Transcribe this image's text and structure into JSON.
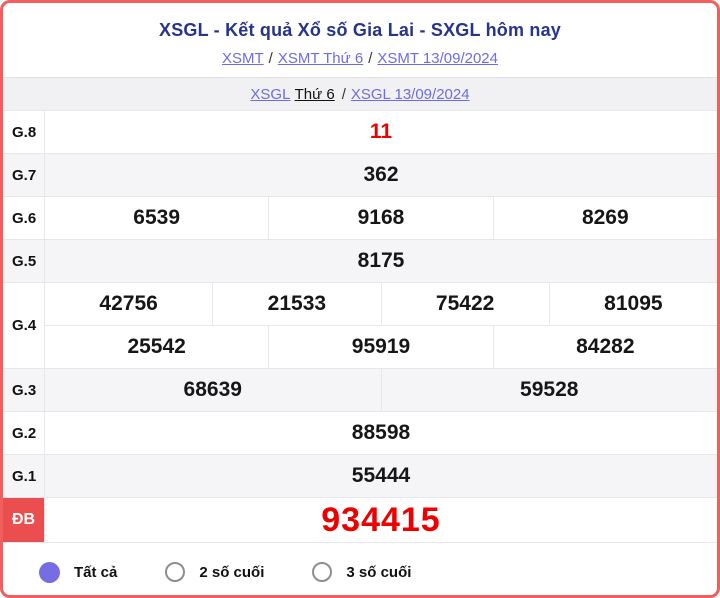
{
  "header": {
    "title": "XSGL - Kết quả Xổ số Gia Lai - SXGL hôm nay",
    "separator": "/",
    "breadcrumb_xsmt": {
      "link1": "XSMT",
      "link2": "XSMT Thứ 6",
      "link3": "XSMT 13/09/2024"
    },
    "breadcrumb_xsgl": {
      "link1": "XSGL",
      "text1": "Thứ 6",
      "link2": "XSGL 13/09/2024"
    }
  },
  "results": {
    "rows": [
      {
        "label": "G.8",
        "groups": [
          [
            "11"
          ]
        ],
        "shade": false,
        "red": true,
        "special": false
      },
      {
        "label": "G.7",
        "groups": [
          [
            "362"
          ]
        ],
        "shade": true,
        "red": false,
        "special": false
      },
      {
        "label": "G.6",
        "groups": [
          [
            "6539",
            "9168",
            "8269"
          ]
        ],
        "shade": false,
        "red": false,
        "special": false
      },
      {
        "label": "G.5",
        "groups": [
          [
            "8175"
          ]
        ],
        "shade": true,
        "red": false,
        "special": false
      },
      {
        "label": "G.4",
        "groups": [
          [
            "42756",
            "21533",
            "75422",
            "81095"
          ],
          [
            "25542",
            "95919",
            "84282"
          ]
        ],
        "shade": false,
        "red": false,
        "special": false
      },
      {
        "label": "G.3",
        "groups": [
          [
            "68639",
            "59528"
          ]
        ],
        "shade": true,
        "red": false,
        "special": false
      },
      {
        "label": "G.2",
        "groups": [
          [
            "88598"
          ]
        ],
        "shade": false,
        "red": false,
        "special": false
      },
      {
        "label": "G.1",
        "groups": [
          [
            "55444"
          ]
        ],
        "shade": true,
        "red": false,
        "special": false
      },
      {
        "label": "ĐB",
        "groups": [
          [
            "934415"
          ]
        ],
        "shade": false,
        "red": true,
        "special": true
      }
    ]
  },
  "filters": {
    "options": [
      {
        "label": "Tất cả",
        "selected": true
      },
      {
        "label": "2 số cuối",
        "selected": false
      },
      {
        "label": "3 số cuối",
        "selected": false
      }
    ]
  },
  "colors": {
    "page_border_red": "#f15e5e",
    "title_navy": "#27348b",
    "link_purple": "#6c6ce4",
    "value_red": "#ee0000",
    "special_label_bg": "#ea4e4e",
    "radio_selected_purple": "#766de4",
    "row_shade_gray": "#f5f5f7"
  }
}
